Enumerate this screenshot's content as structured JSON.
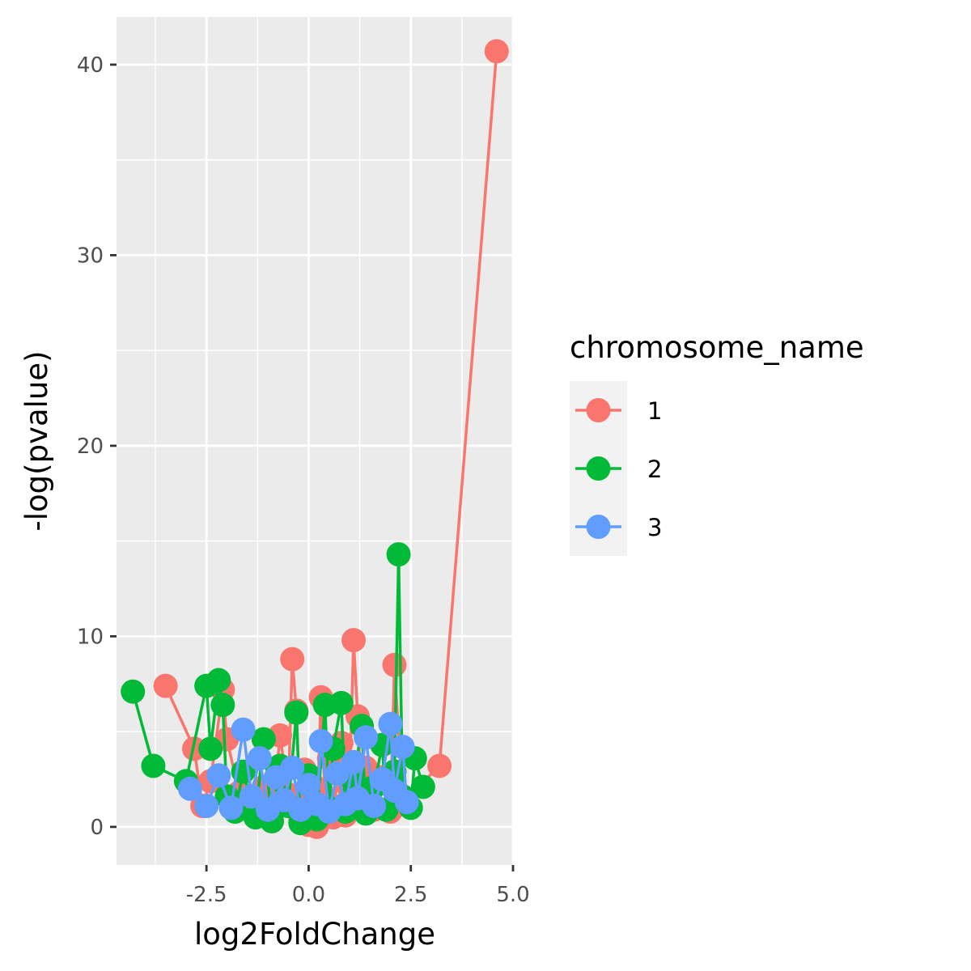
{
  "chart_data": {
    "type": "scatter",
    "xlabel": "log2FoldChange",
    "ylabel": "-log(pvalue)",
    "xlim": [
      -4.7,
      5.0
    ],
    "ylim": [
      -2,
      42.5
    ],
    "x_ticks": [
      -2.5,
      0.0,
      2.5,
      5.0
    ],
    "x_tick_labels": [
      "-2.5",
      "0.0",
      "2.5",
      "5.0"
    ],
    "y_ticks": [
      0,
      10,
      20,
      30,
      40
    ],
    "y_tick_labels": [
      "0",
      "10",
      "20",
      "30",
      "40"
    ],
    "grid": true,
    "legend": {
      "title": "chromosome_name",
      "placement": "right"
    },
    "points_connected": true,
    "series": [
      {
        "name": "1",
        "color": "#F8766D",
        "points": [
          [
            -3.5,
            7.4
          ],
          [
            -2.8,
            4.1
          ],
          [
            -2.6,
            1.1
          ],
          [
            -2.4,
            2.4
          ],
          [
            -2.1,
            7.2
          ],
          [
            -2.0,
            4.6
          ],
          [
            -1.7,
            1.8
          ],
          [
            -1.5,
            1.2
          ],
          [
            -1.3,
            0.6
          ],
          [
            -1.1,
            2.1
          ],
          [
            -0.9,
            0.3
          ],
          [
            -0.7,
            4.8
          ],
          [
            -0.5,
            1.7
          ],
          [
            -0.4,
            8.8
          ],
          [
            -0.3,
            6.1
          ],
          [
            -0.2,
            0.4
          ],
          [
            -0.1,
            3.0
          ],
          [
            0.0,
            0.1
          ],
          [
            0.1,
            2.2
          ],
          [
            0.2,
            0.0
          ],
          [
            0.3,
            6.8
          ],
          [
            0.4,
            1.5
          ],
          [
            0.5,
            3.6
          ],
          [
            0.6,
            0.5
          ],
          [
            0.8,
            4.4
          ],
          [
            0.9,
            0.6
          ],
          [
            1.0,
            2.0
          ],
          [
            1.1,
            9.8
          ],
          [
            1.2,
            5.8
          ],
          [
            1.3,
            1.2
          ],
          [
            1.4,
            3.1
          ],
          [
            1.6,
            0.9
          ],
          [
            1.8,
            2.6
          ],
          [
            2.0,
            0.8
          ],
          [
            2.1,
            8.5
          ],
          [
            2.3,
            1.3
          ],
          [
            3.2,
            3.2
          ],
          [
            4.6,
            40.7
          ]
        ]
      },
      {
        "name": "2",
        "color": "#00BA38",
        "points": [
          [
            -4.3,
            7.1
          ],
          [
            -3.8,
            3.2
          ],
          [
            -3.0,
            2.4
          ],
          [
            -2.5,
            7.4
          ],
          [
            -2.4,
            4.1
          ],
          [
            -2.2,
            7.7
          ],
          [
            -2.1,
            6.4
          ],
          [
            -2.0,
            1.6
          ],
          [
            -1.8,
            0.8
          ],
          [
            -1.6,
            2.9
          ],
          [
            -1.3,
            0.5
          ],
          [
            -1.1,
            4.6
          ],
          [
            -0.9,
            0.3
          ],
          [
            -0.7,
            3.2
          ],
          [
            -0.5,
            1.1
          ],
          [
            -0.3,
            6.0
          ],
          [
            -0.2,
            0.2
          ],
          [
            0.0,
            2.7
          ],
          [
            0.2,
            0.4
          ],
          [
            0.4,
            6.4
          ],
          [
            0.5,
            1.0
          ],
          [
            0.6,
            4.1
          ],
          [
            0.8,
            6.5
          ],
          [
            0.9,
            0.8
          ],
          [
            1.1,
            2.4
          ],
          [
            1.3,
            5.3
          ],
          [
            1.4,
            0.7
          ],
          [
            1.6,
            2.1
          ],
          [
            1.8,
            4.3
          ],
          [
            1.9,
            0.9
          ],
          [
            2.1,
            2.9
          ],
          [
            2.2,
            14.3
          ],
          [
            2.3,
            1.6
          ],
          [
            2.5,
            1.0
          ],
          [
            2.6,
            3.6
          ],
          [
            2.8,
            2.1
          ]
        ]
      },
      {
        "name": "3",
        "color": "#619CFF",
        "points": [
          [
            -2.9,
            2.0
          ],
          [
            -2.5,
            1.1
          ],
          [
            -2.2,
            2.7
          ],
          [
            -1.9,
            1.0
          ],
          [
            -1.6,
            5.1
          ],
          [
            -1.4,
            1.6
          ],
          [
            -1.2,
            3.6
          ],
          [
            -1.0,
            0.9
          ],
          [
            -0.8,
            2.6
          ],
          [
            -0.6,
            1.4
          ],
          [
            -0.4,
            3.1
          ],
          [
            -0.2,
            0.9
          ],
          [
            0.0,
            2.2
          ],
          [
            0.2,
            1.2
          ],
          [
            0.3,
            4.5
          ],
          [
            0.5,
            0.8
          ],
          [
            0.7,
            2.8
          ],
          [
            0.9,
            1.2
          ],
          [
            1.1,
            3.4
          ],
          [
            1.2,
            1.5
          ],
          [
            1.4,
            4.7
          ],
          [
            1.6,
            1.1
          ],
          [
            1.8,
            2.5
          ],
          [
            2.0,
            5.4
          ],
          [
            2.1,
            1.9
          ],
          [
            2.3,
            4.2
          ],
          [
            2.4,
            1.3
          ]
        ]
      }
    ]
  }
}
